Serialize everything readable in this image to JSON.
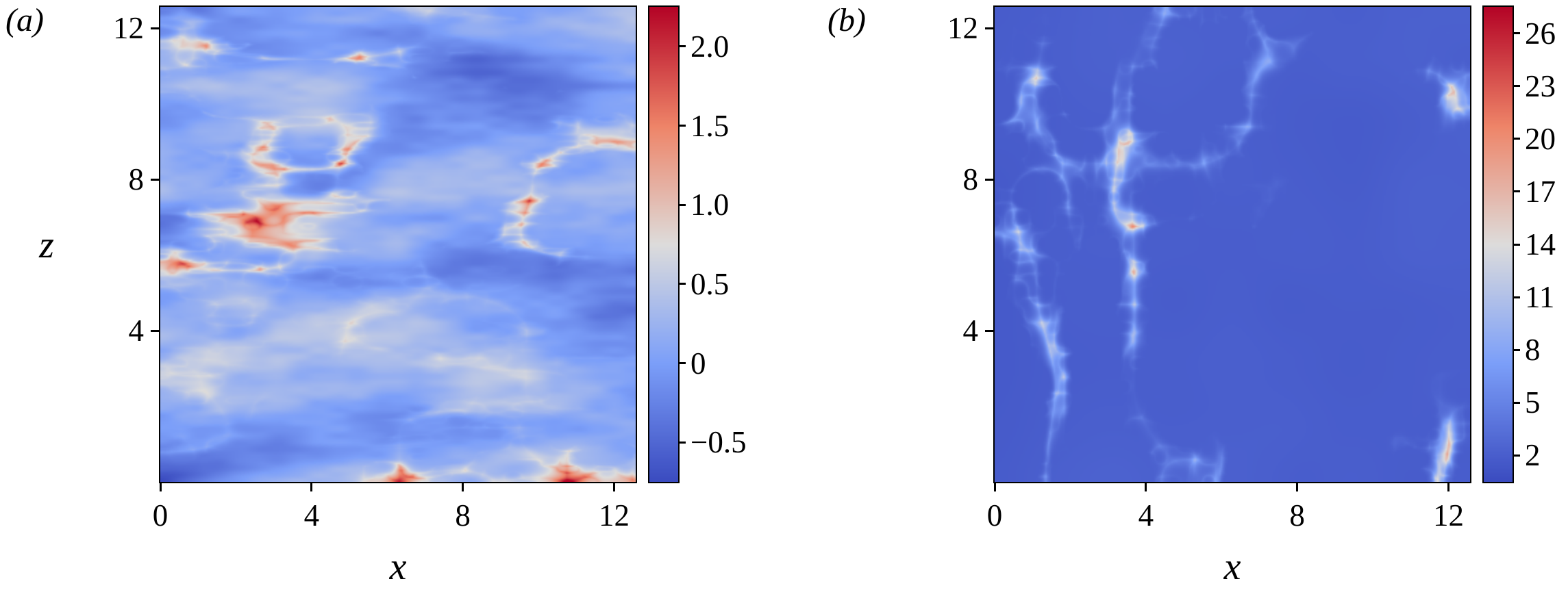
{
  "figure": {
    "background": "#ffffff",
    "panels": [
      {
        "id": "a",
        "label": "(a)",
        "xlabel": "x",
        "ylabel": "z",
        "x_ticks": [
          "0",
          "4",
          "8",
          "12"
        ],
        "y_ticks": [
          "4",
          "8",
          "12"
        ],
        "colorbar_ticks": [
          "2.0",
          "1.5",
          "1.0",
          "0.5",
          "0",
          "−0.5"
        ]
      },
      {
        "id": "b",
        "label": "(b)",
        "xlabel": "x",
        "ylabel": "",
        "x_ticks": [
          "0",
          "4",
          "8",
          "12"
        ],
        "y_ticks": [
          "4",
          "8",
          "12"
        ],
        "colorbar_ticks": [
          "26",
          "23",
          "20",
          "17",
          "14",
          "11",
          "8",
          "5",
          "2"
        ]
      }
    ]
  },
  "chart_data": [
    {
      "type": "heatmap",
      "panel": "(a)",
      "title": "",
      "xlabel": "x",
      "ylabel": "z",
      "x_range": [
        0,
        12.57
      ],
      "y_range": [
        0,
        12.57
      ],
      "x_ticks": [
        0,
        4,
        8,
        12
      ],
      "y_ticks": [
        4,
        8,
        12
      ],
      "grid": false,
      "colormap": "coolwarm",
      "colorbar_position": "right",
      "colorbar_range": [
        -0.75,
        2.25
      ],
      "colorbar_ticks": [
        2.0,
        1.5,
        1.0,
        0.5,
        0,
        -0.5
      ],
      "field_description": "Instantaneous turbulent scalar/velocity field in the x-z plane: streaky, horizontally elongated structures; pale- and dark-blue background (values around -0.5 to 0.5) with thin red-orange filaments (values 1 to 2.25) clustered in horizontal bands"
    },
    {
      "type": "heatmap",
      "panel": "(b)",
      "title": "",
      "xlabel": "x",
      "ylabel": "",
      "x_range": [
        0,
        12.57
      ],
      "y_range": [
        0,
        12.57
      ],
      "x_ticks": [
        0,
        4,
        8,
        12
      ],
      "y_ticks": [
        4,
        8,
        12
      ],
      "grid": false,
      "colormap": "coolwarm",
      "colorbar_position": "right",
      "colorbar_range": [
        0.5,
        27.5
      ],
      "colorbar_ticks": [
        26,
        23,
        20,
        17,
        14,
        11,
        8,
        5,
        2
      ],
      "field_description": "Mostly uniform dark-blue field (value near 2) with sparse faint whitish vortical wisps and rings (values 8-14) and rare small red spots (values above 20)"
    }
  ]
}
